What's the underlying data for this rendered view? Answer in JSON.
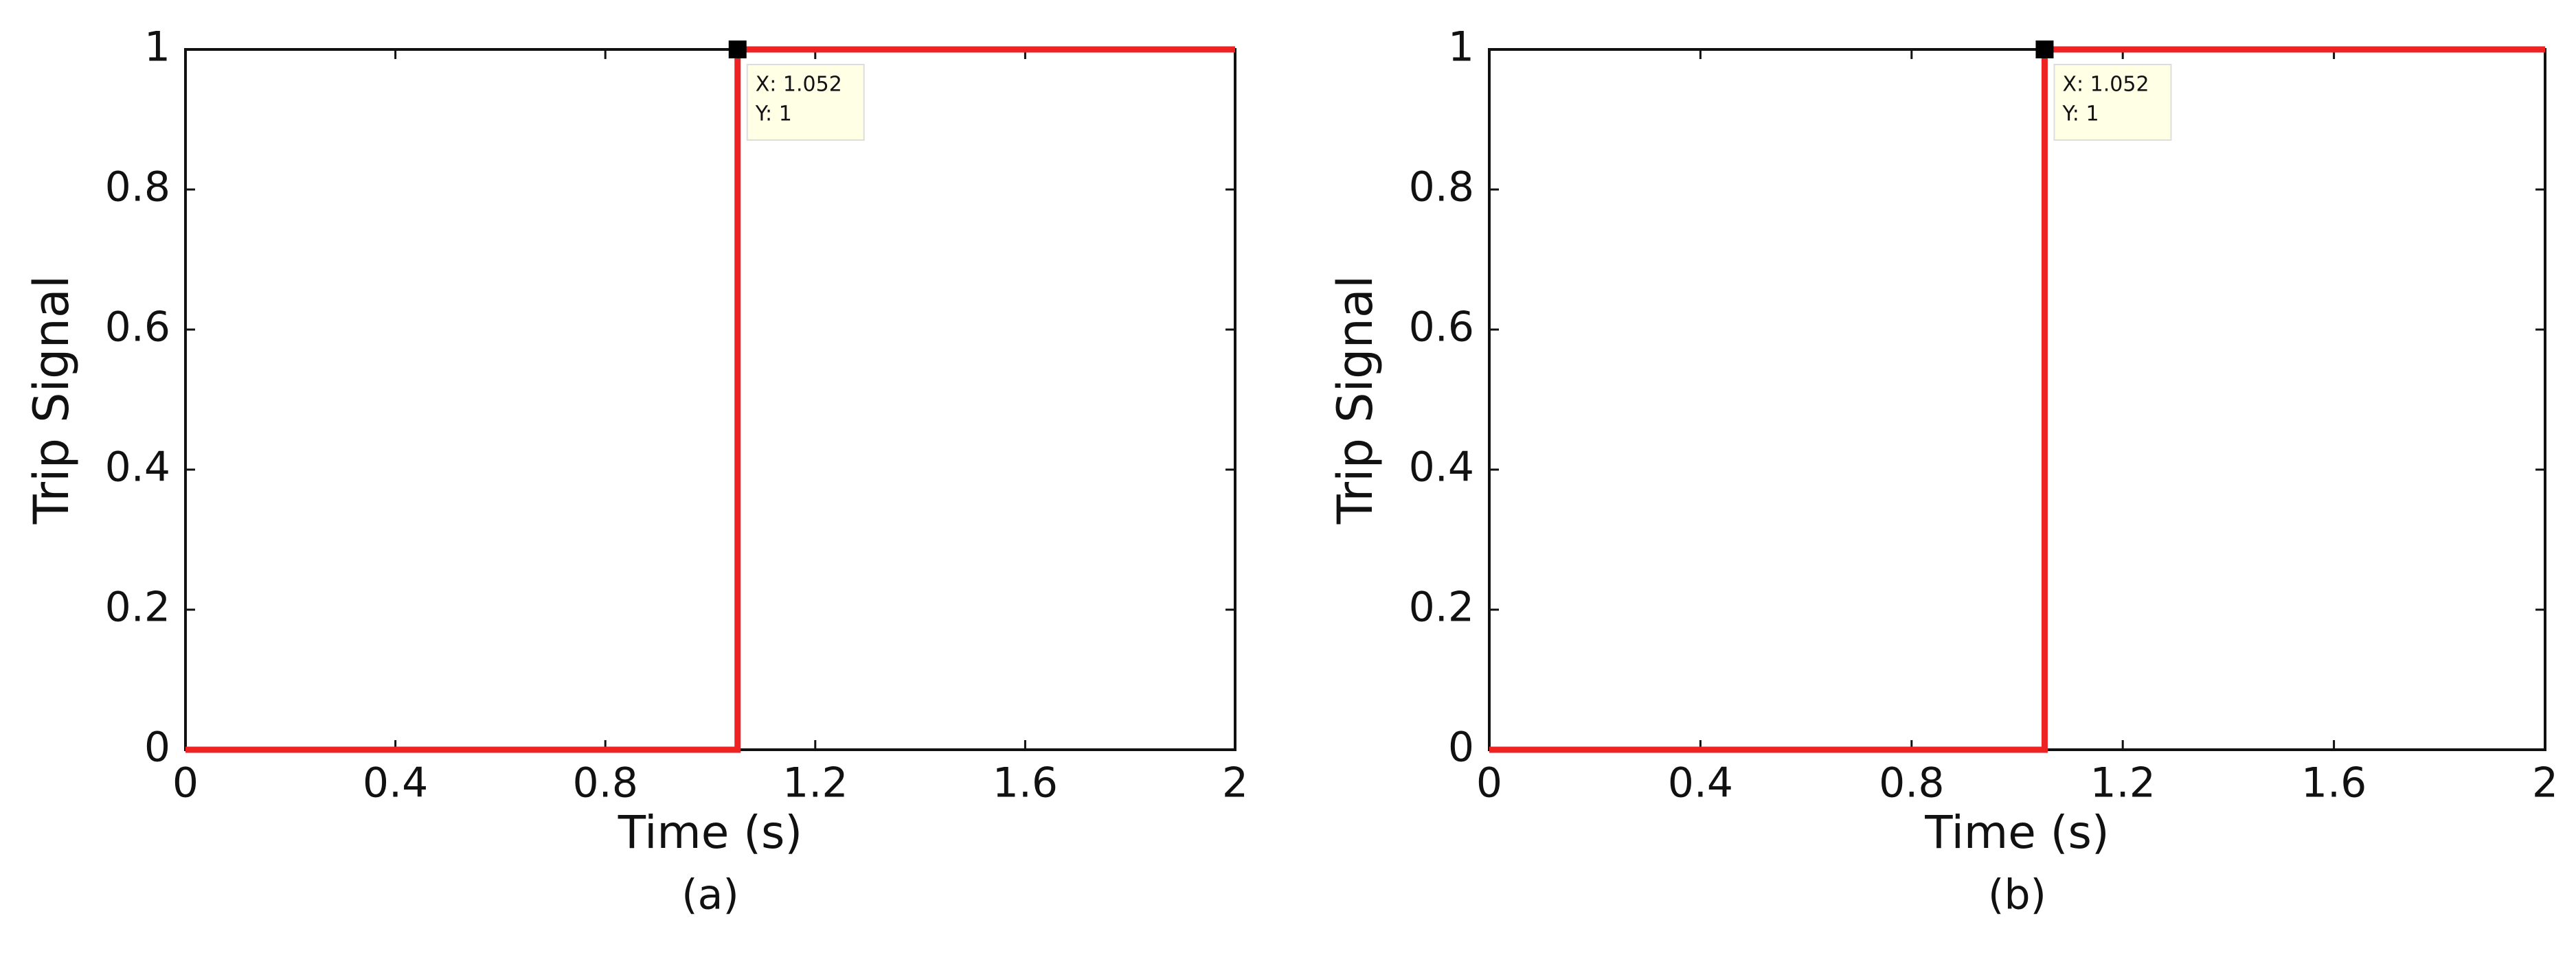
{
  "chart_data": [
    {
      "type": "line",
      "ylabel": "Trip Signal",
      "xlabel": "Time (s)",
      "caption": "(a)",
      "x": [
        0,
        1.052,
        1.052,
        2
      ],
      "series": [
        {
          "color": "#ee2222",
          "values": [
            0,
            0,
            1,
            1
          ]
        }
      ],
      "xlim": [
        0,
        2
      ],
      "xticks": [
        0,
        0.4,
        0.8,
        1.2,
        1.6,
        2
      ],
      "ylim": [
        0,
        1
      ],
      "yticks": [
        0,
        0.2,
        0.4,
        0.6,
        0.8,
        1
      ],
      "datatip": {
        "x": 1.052,
        "y": 1,
        "x_label": "X: 1.052",
        "y_label": "Y: 1"
      }
    },
    {
      "type": "line",
      "ylabel": "Trip Signal",
      "xlabel": "Time (s)",
      "caption": "(b)",
      "x": [
        0,
        1.052,
        1.052,
        2
      ],
      "series": [
        {
          "color": "#ee2222",
          "values": [
            0,
            0,
            1,
            1
          ]
        }
      ],
      "xlim": [
        0,
        2
      ],
      "xticks": [
        0,
        0.4,
        0.8,
        1.2,
        1.6,
        2
      ],
      "ylim": [
        0,
        1
      ],
      "yticks": [
        0,
        0.2,
        0.4,
        0.6,
        0.8,
        1
      ],
      "datatip": {
        "x": 1.052,
        "y": 1,
        "x_label": "X: 1.052",
        "y_label": "Y: 1"
      }
    }
  ]
}
